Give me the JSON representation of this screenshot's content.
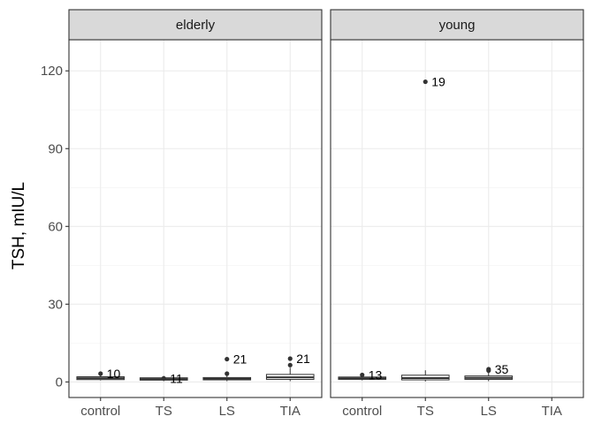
{
  "chart_data": {
    "type": "boxplot",
    "ylabel": "TSH, mIU/L",
    "xlabel": "",
    "ylim": [
      -6,
      132
    ],
    "yticks": [
      0,
      30,
      60,
      90,
      120
    ],
    "categories": [
      "control",
      "TS",
      "LS",
      "TIA"
    ],
    "grid": true,
    "panels": [
      {
        "name": "elderly",
        "boxes": [
          {
            "category": "control",
            "min": 0.6,
            "q1": 0.9,
            "median": 1.4,
            "q3": 2.0,
            "max": 2.8,
            "outliers": [
              {
                "y": 3.2,
                "label": "10"
              }
            ]
          },
          {
            "category": "TS",
            "min": 0.3,
            "q1": 0.7,
            "median": 1.1,
            "q3": 1.6,
            "max": 2.2,
            "outliers": [
              {
                "y": 1.4,
                "label": "11"
              }
            ]
          },
          {
            "category": "LS",
            "min": 0.3,
            "q1": 0.8,
            "median": 1.2,
            "q3": 1.7,
            "max": 2.5,
            "outliers": [
              {
                "y": 8.8,
                "label": "21"
              },
              {
                "y": 3.2,
                "label": ""
              }
            ]
          },
          {
            "category": "TIA",
            "min": 0.3,
            "q1": 1.0,
            "median": 1.8,
            "q3": 2.9,
            "max": 5.5,
            "outliers": [
              {
                "y": 9.0,
                "label": "21"
              },
              {
                "y": 6.5,
                "label": ""
              }
            ]
          }
        ]
      },
      {
        "name": "young",
        "boxes": [
          {
            "category": "control",
            "min": 0.6,
            "q1": 1.0,
            "median": 1.4,
            "q3": 1.9,
            "max": 3.0,
            "outliers": [
              {
                "y": 2.7,
                "label": "13"
              }
            ]
          },
          {
            "category": "TS",
            "min": 0.2,
            "q1": 0.8,
            "median": 1.5,
            "q3": 2.6,
            "max": 4.5,
            "outliers": [
              {
                "y": 115.8,
                "label": "19"
              }
            ]
          },
          {
            "category": "LS",
            "min": 0.3,
            "q1": 1.0,
            "median": 1.6,
            "q3": 2.3,
            "max": 3.8,
            "outliers": [
              {
                "y": 4.9,
                "label": "35"
              },
              {
                "y": 4.4,
                "label": ""
              }
            ]
          }
        ]
      }
    ]
  }
}
